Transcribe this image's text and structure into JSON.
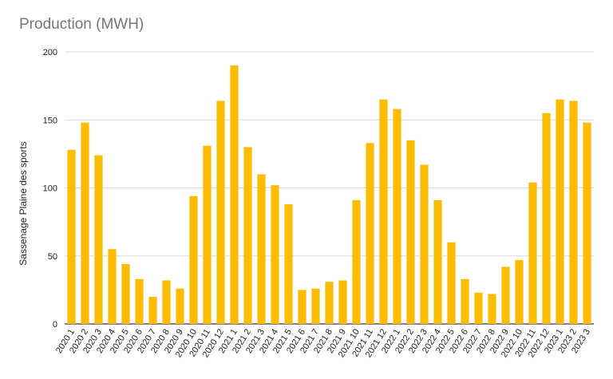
{
  "chart_data": {
    "type": "bar",
    "title": "Production (MWH)",
    "xlabel": "",
    "ylabel": "Sassenage Plaine des sports",
    "ylim": [
      0,
      200
    ],
    "yticks": [
      0,
      50,
      100,
      150,
      200
    ],
    "grid": true,
    "legend": "none",
    "bar_color": "#FBBC04",
    "categories": [
      "2020 1",
      "2020 2",
      "2020 3",
      "2020 4",
      "2020 5",
      "2020 6",
      "2020 7",
      "2020 8",
      "2020 9",
      "2020 10",
      "2020 11",
      "2020 12",
      "2021 1",
      "2021 2",
      "2021 3",
      "2021 4",
      "2021 5",
      "2021 6",
      "2021 7",
      "2021 8",
      "2021 9",
      "2021 10",
      "2021 11",
      "2021 12",
      "2022 1",
      "2022 2",
      "2022 3",
      "2022 4",
      "2022 5",
      "2022 6",
      "2022 7",
      "2022 8",
      "2022 9",
      "2022 10",
      "2022 11",
      "2022 12",
      "2023 1",
      "2023 2",
      "2023 3"
    ],
    "values": [
      128,
      148,
      124,
      55,
      44,
      33,
      20,
      32,
      26,
      94,
      131,
      164,
      190,
      130,
      110,
      102,
      88,
      25,
      26,
      31,
      32,
      91,
      133,
      165,
      158,
      135,
      117,
      91,
      60,
      33,
      23,
      22,
      42,
      47,
      104,
      155,
      165,
      164,
      148
    ]
  }
}
